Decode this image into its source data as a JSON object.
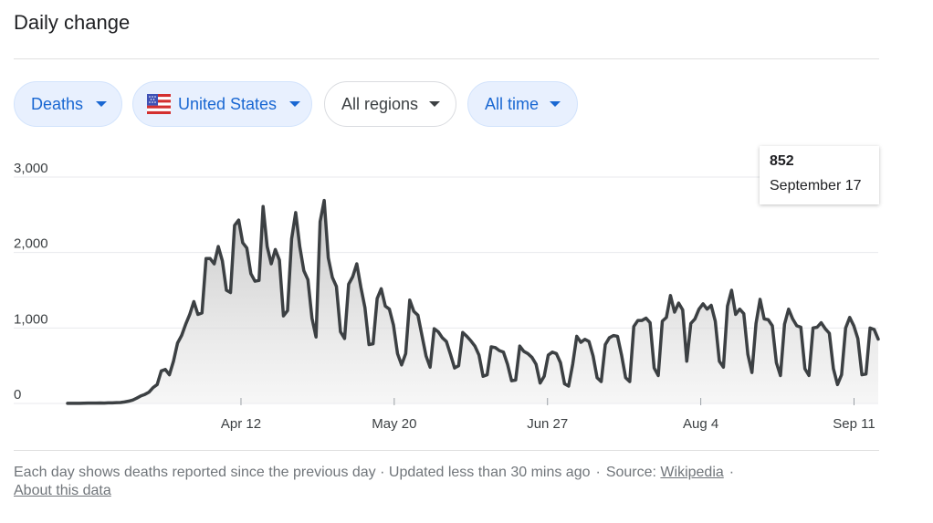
{
  "header": {
    "title": "Daily change"
  },
  "filters": {
    "metric": "Deaths",
    "location": "United States",
    "location_icon": "us-flag-icon",
    "regions": "All regions",
    "time": "All time"
  },
  "tooltip": {
    "value": "852",
    "date": "September 17"
  },
  "footer": {
    "description": "Each day shows deaths reported since the previous day · Updated less than 30 mins ago",
    "separator": "·",
    "source_label": "Source:",
    "source_link": "Wikipedia",
    "about_link": "About this data"
  },
  "colors": {
    "line": "#3c4043",
    "fill_top": "#bdbdbd",
    "grid": "#e8eaed",
    "chip_active_bg": "#e8f0fe",
    "chip_active_text": "#1967d2",
    "text_muted": "#70757a"
  },
  "chart_data": {
    "type": "area",
    "title": "",
    "xlabel": "",
    "ylabel": "",
    "ylim": [
      0,
      3000
    ],
    "y_ticks": [
      0,
      1000,
      2000,
      3000
    ],
    "y_tick_labels": [
      "0",
      "1,000",
      "2,000",
      "3,000"
    ],
    "x_tick_labels": [
      "Apr 12",
      "May 20",
      "Jun 27",
      "Aug 4",
      "Sep 11"
    ],
    "x_tick_dates": [
      "2020-04-12",
      "2020-05-20",
      "2020-06-27",
      "2020-08-04",
      "2020-09-11"
    ],
    "grid": true,
    "legend": "none",
    "series": [
      {
        "x_start": "2020-02-29",
        "x_end": "2020-09-17",
        "values": [
          1,
          1,
          1,
          2,
          3,
          4,
          5,
          4,
          6,
          5,
          7,
          8,
          10,
          12,
          20,
          30,
          45,
          70,
          100,
          120,
          150,
          210,
          250,
          430,
          450,
          380,
          560,
          800,
          900,
          1050,
          1180,
          1350,
          1180,
          1200,
          1920,
          1920,
          1850,
          2080,
          1890,
          1500,
          1470,
          2360,
          2430,
          2130,
          2060,
          1720,
          1620,
          1630,
          2610,
          2080,
          1850,
          2040,
          1900,
          1160,
          1230,
          2180,
          2530,
          2080,
          1760,
          1640,
          1130,
          880,
          2410,
          2690,
          1930,
          1670,
          1550,
          950,
          860,
          1580,
          1680,
          1850,
          1540,
          1270,
          780,
          790,
          1390,
          1520,
          1290,
          1250,
          1040,
          660,
          510,
          660,
          1370,
          1220,
          1170,
          900,
          630,
          480,
          990,
          950,
          870,
          820,
          650,
          470,
          500,
          940,
          890,
          830,
          760,
          640,
          360,
          380,
          750,
          740,
          700,
          680,
          520,
          300,
          310,
          760,
          690,
          660,
          610,
          520,
          270,
          360,
          640,
          680,
          660,
          540,
          260,
          230,
          520,
          890,
          810,
          850,
          820,
          630,
          340,
          290,
          780,
          870,
          900,
          890,
          640,
          340,
          290,
          1020,
          1100,
          1100,
          1130,
          1070,
          470,
          370,
          1090,
          1140,
          1430,
          1210,
          1330,
          1240,
          560,
          1060,
          1120,
          1250,
          1320,
          1250,
          1300,
          1090,
          560,
          480,
          1290,
          1500,
          1180,
          1250,
          1190,
          650,
          410,
          1060,
          1380,
          1120,
          1110,
          1030,
          540,
          370,
          1050,
          1250,
          1120,
          1030,
          1010,
          460,
          370,
          1000,
          1010,
          1070,
          990,
          930,
          460,
          250,
          380,
          1000,
          1140,
          1030,
          860,
          380,
          390,
          1000,
          980,
          852
        ]
      }
    ]
  }
}
